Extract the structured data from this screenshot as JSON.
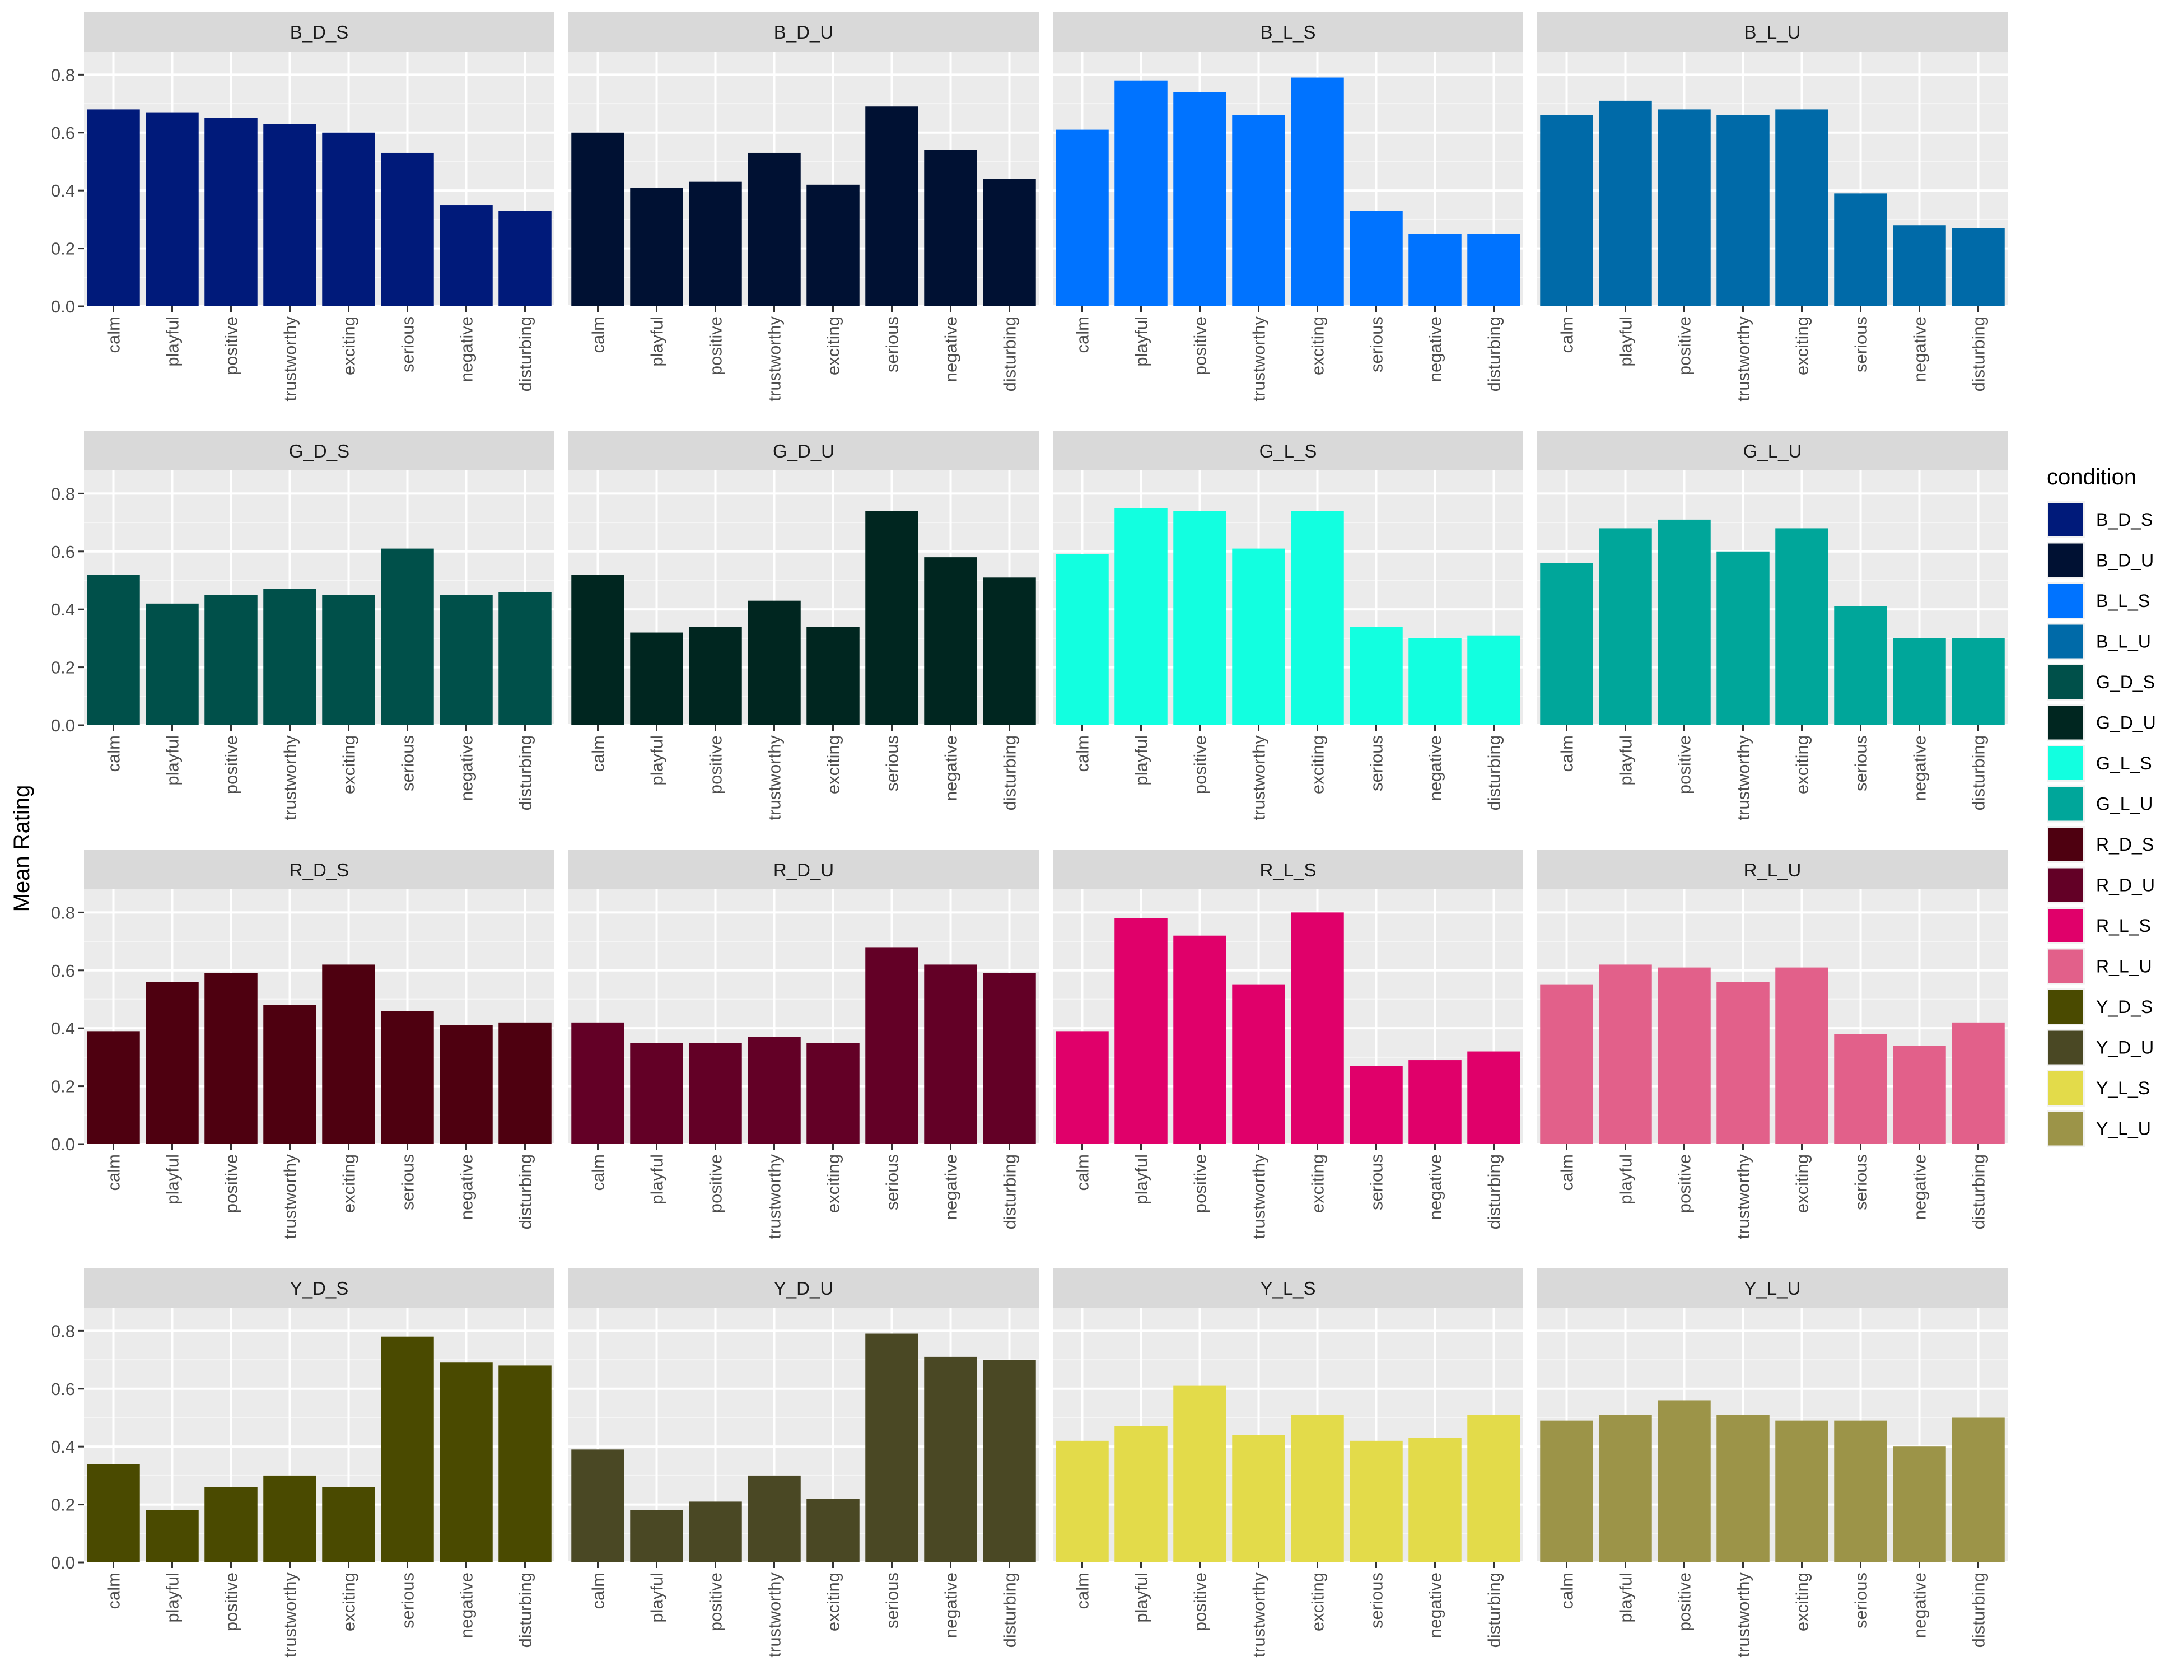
{
  "chart_data": {
    "type": "bar",
    "facet_layout": "4x4",
    "ylabel": "Mean Rating",
    "xlabel": "",
    "ylim": [
      0,
      0.88
    ],
    "y_ticks": [
      0.0,
      0.2,
      0.4,
      0.6,
      0.8
    ],
    "y_tick_labels": [
      "0.0",
      "0.2",
      "0.4",
      "0.6",
      "0.8"
    ],
    "categories": [
      "calm",
      "playful",
      "positive",
      "trustworthy",
      "exciting",
      "serious",
      "negative",
      "disturbing"
    ],
    "grid": true,
    "legend": {
      "title": "condition",
      "placement": "right",
      "entries": [
        {
          "label": "B_D_S",
          "color": "#001a7a"
        },
        {
          "label": "B_D_U",
          "color": "#001133"
        },
        {
          "label": "B_L_S",
          "color": "#0073ff"
        },
        {
          "label": "B_L_U",
          "color": "#006aa8"
        },
        {
          "label": "G_D_S",
          "color": "#00504a"
        },
        {
          "label": "G_D_U",
          "color": "#002620"
        },
        {
          "label": "G_L_S",
          "color": "#12ffe0"
        },
        {
          "label": "G_L_U",
          "color": "#00a69a"
        },
        {
          "label": "R_D_S",
          "color": "#4e0010"
        },
        {
          "label": "R_D_U",
          "color": "#630026"
        },
        {
          "label": "R_L_S",
          "color": "#e0006a"
        },
        {
          "label": "R_L_U",
          "color": "#e2608a"
        },
        {
          "label": "Y_D_S",
          "color": "#4a4a00"
        },
        {
          "label": "Y_D_U",
          "color": "#4a4824"
        },
        {
          "label": "Y_L_S",
          "color": "#e3db4a"
        },
        {
          "label": "Y_L_U",
          "color": "#9c9448"
        }
      ]
    },
    "panels": [
      {
        "name": "B_D_S",
        "color": "#001a7a",
        "values": [
          0.68,
          0.67,
          0.65,
          0.63,
          0.6,
          0.53,
          0.35,
          0.33
        ]
      },
      {
        "name": "B_D_U",
        "color": "#001133",
        "values": [
          0.6,
          0.41,
          0.43,
          0.53,
          0.42,
          0.69,
          0.54,
          0.44
        ]
      },
      {
        "name": "B_L_S",
        "color": "#0073ff",
        "values": [
          0.61,
          0.78,
          0.74,
          0.66,
          0.79,
          0.33,
          0.25,
          0.25
        ]
      },
      {
        "name": "B_L_U",
        "color": "#006aa8",
        "values": [
          0.66,
          0.71,
          0.68,
          0.66,
          0.68,
          0.39,
          0.28,
          0.27
        ]
      },
      {
        "name": "G_D_S",
        "color": "#00504a",
        "values": [
          0.52,
          0.42,
          0.45,
          0.47,
          0.45,
          0.61,
          0.45,
          0.46
        ]
      },
      {
        "name": "G_D_U",
        "color": "#002620",
        "values": [
          0.52,
          0.32,
          0.34,
          0.43,
          0.34,
          0.74,
          0.58,
          0.51
        ]
      },
      {
        "name": "G_L_S",
        "color": "#12ffe0",
        "values": [
          0.59,
          0.75,
          0.74,
          0.61,
          0.74,
          0.34,
          0.3,
          0.31
        ]
      },
      {
        "name": "G_L_U",
        "color": "#00a69a",
        "values": [
          0.56,
          0.68,
          0.71,
          0.6,
          0.68,
          0.41,
          0.3,
          0.3
        ]
      },
      {
        "name": "R_D_S",
        "color": "#4e0010",
        "values": [
          0.39,
          0.56,
          0.59,
          0.48,
          0.62,
          0.46,
          0.41,
          0.42
        ]
      },
      {
        "name": "R_D_U",
        "color": "#630026",
        "values": [
          0.42,
          0.35,
          0.35,
          0.37,
          0.35,
          0.68,
          0.62,
          0.59
        ]
      },
      {
        "name": "R_L_S",
        "color": "#e0006a",
        "values": [
          0.39,
          0.78,
          0.72,
          0.55,
          0.8,
          0.27,
          0.29,
          0.32
        ]
      },
      {
        "name": "R_L_U",
        "color": "#e2608a",
        "values": [
          0.55,
          0.62,
          0.61,
          0.56,
          0.61,
          0.38,
          0.34,
          0.42
        ]
      },
      {
        "name": "Y_D_S",
        "color": "#4a4a00",
        "values": [
          0.34,
          0.18,
          0.26,
          0.3,
          0.26,
          0.78,
          0.69,
          0.68
        ]
      },
      {
        "name": "Y_D_U",
        "color": "#4a4824",
        "values": [
          0.39,
          0.18,
          0.21,
          0.3,
          0.22,
          0.79,
          0.71,
          0.7
        ]
      },
      {
        "name": "Y_L_S",
        "color": "#e3db4a",
        "values": [
          0.42,
          0.47,
          0.61,
          0.44,
          0.51,
          0.42,
          0.43,
          0.51
        ]
      },
      {
        "name": "Y_L_U",
        "color": "#9c9448",
        "values": [
          0.49,
          0.51,
          0.56,
          0.51,
          0.49,
          0.49,
          0.4,
          0.5
        ]
      }
    ]
  }
}
